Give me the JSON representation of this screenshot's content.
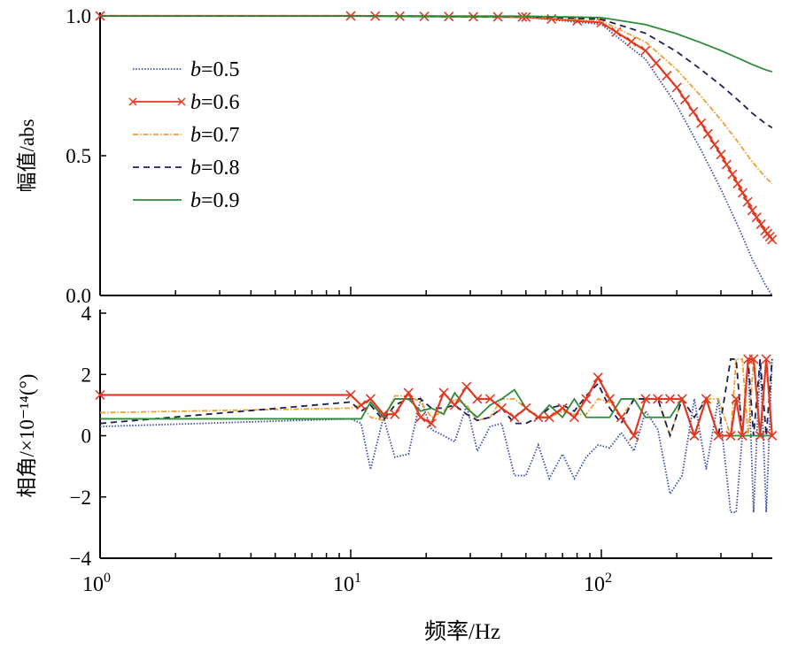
{
  "chart_data": [
    {
      "type": "line",
      "ylabel": "幅值/abs",
      "xscale": "log",
      "xlim": [
        1,
        480
      ],
      "ylim": [
        0,
        1
      ],
      "yticks": [
        "0.0",
        "0.5",
        "1.0"
      ],
      "grid": false,
      "legend_position": "upper-left",
      "x": [
        1,
        10,
        50,
        100,
        150,
        200,
        250,
        300,
        350,
        400,
        450,
        480
      ],
      "series": [
        {
          "name": "b=0.5",
          "name_var": "b",
          "name_val": "=0.5",
          "color": "#3b4ea0",
          "style": "dotted",
          "values": [
            1,
            1,
            0.995,
            0.97,
            0.845,
            0.68,
            0.52,
            0.38,
            0.25,
            0.13,
            0.04,
            0
          ]
        },
        {
          "name": "b=0.6",
          "name_var": "b",
          "name_val": "=0.6",
          "color": "#e03a22",
          "style": "solid-x",
          "values": [
            1,
            1,
            0.996,
            0.976,
            0.876,
            0.744,
            0.616,
            0.504,
            0.4,
            0.304,
            0.232,
            0.2
          ]
        },
        {
          "name": "b=0.7",
          "name_var": "b",
          "name_val": "=0.7",
          "color": "#f0a030",
          "style": "dashdot",
          "values": [
            1,
            1,
            0.997,
            0.982,
            0.907,
            0.808,
            0.712,
            0.628,
            0.55,
            0.478,
            0.424,
            0.4
          ]
        },
        {
          "name": "b=0.8",
          "name_var": "b",
          "name_val": "=0.8",
          "color": "#1e1e50",
          "style": "dashed",
          "values": [
            1,
            1,
            0.998,
            0.988,
            0.938,
            0.872,
            0.808,
            0.752,
            0.7,
            0.652,
            0.616,
            0.6
          ]
        },
        {
          "name": "b=0.9",
          "name_var": "b",
          "name_val": "=0.9",
          "color": "#2e8b3a",
          "style": "solid",
          "values": [
            1,
            1,
            0.999,
            0.994,
            0.969,
            0.936,
            0.904,
            0.876,
            0.85,
            0.826,
            0.808,
            0.8
          ]
        }
      ]
    },
    {
      "type": "line",
      "ylabel": "相角/×10⁻¹⁴(°)",
      "xlabel": "频率/Hz",
      "xscale": "log",
      "xlim": [
        1,
        480
      ],
      "ylim": [
        -4,
        4
      ],
      "yticks": [
        "−4",
        "−2",
        "0",
        "2",
        "4"
      ],
      "xticks": [
        {
          "base": "10",
          "exp": "0"
        },
        {
          "base": "10",
          "exp": "1"
        },
        {
          "base": "10",
          "exp": "2"
        }
      ],
      "grid": false,
      "x": [
        1,
        10,
        11,
        12,
        13.5,
        15,
        17,
        19,
        21,
        23.5,
        26,
        29,
        32,
        36,
        40,
        45,
        50,
        56,
        62,
        70,
        78,
        87,
        97,
        108,
        120,
        135,
        150,
        168,
        188,
        210,
        235,
        262,
        293,
        328,
        345,
        365,
        385,
        405,
        430,
        455,
        480
      ],
      "series": [
        {
          "name": "b=0.5",
          "color": "#3b4ea0",
          "style": "dotted",
          "values": [
            0.3,
            0.55,
            0.4,
            -1.1,
            0.6,
            -0.7,
            -0.6,
            1.2,
            0.2,
            0.0,
            -0.2,
            1.0,
            -0.5,
            0.3,
            0.4,
            -1.3,
            -1.3,
            -0.3,
            -1.4,
            -0.6,
            -1.4,
            -0.7,
            -0.3,
            -0.4,
            0.1,
            -0.5,
            0.8,
            0.2,
            -1.9,
            -1.3,
            1.2,
            -1.1,
            1.2,
            -2.5,
            -2.5,
            0,
            2.5,
            -2.5,
            2.5,
            -2.5,
            2.5
          ]
        },
        {
          "name": "b=0.7",
          "color": "#f0a030",
          "style": "dashdot",
          "values": [
            0.75,
            0.9,
            1.0,
            0.6,
            0.5,
            1.3,
            1.3,
            1.1,
            0.6,
            0.8,
            1.2,
            1.0,
            0.5,
            0.6,
            1.2,
            1.2,
            0.9,
            0.6,
            0.6,
            0.8,
            0.7,
            0.7,
            1.2,
            1.1,
            0.6,
            1.2,
            1.2,
            1.2,
            0,
            1.2,
            0,
            1.2,
            1.2,
            0,
            2.5,
            2.5,
            0,
            2.5,
            0,
            2.5,
            0
          ]
        },
        {
          "name": "b=0.8",
          "color": "#1e1e50",
          "style": "dashed",
          "values": [
            0.4,
            1.1,
            0.8,
            1.0,
            0.5,
            1.0,
            1.2,
            1.2,
            0.9,
            0.9,
            1.0,
            0.7,
            0.5,
            0.6,
            0.9,
            0.4,
            0.4,
            0.6,
            0.9,
            1.0,
            0.8,
            1.3,
            1.7,
            0.9,
            0.4,
            1.2,
            1.2,
            1.2,
            0.0,
            1.2,
            0.6,
            1.2,
            0,
            2.5,
            2.5,
            0,
            2.5,
            0,
            2.5,
            0,
            2.5
          ]
        },
        {
          "name": "b=0.9",
          "color": "#2e8b3a",
          "style": "solid",
          "values": [
            0.55,
            0.55,
            0.55,
            1.1,
            0.6,
            1.2,
            1.2,
            0.8,
            0.9,
            0.7,
            1.4,
            0.9,
            0.6,
            1.0,
            1.2,
            1.5,
            0.9,
            0.6,
            1.0,
            0.6,
            1.2,
            0.6,
            0.6,
            0.6,
            1.2,
            1.2,
            0.6,
            0.6,
            0.6,
            1.2,
            0.0,
            1.2,
            0.0,
            0.0,
            0.0,
            0,
            0,
            0,
            0,
            0,
            0
          ]
        },
        {
          "name": "b=0.6",
          "color": "#e03a22",
          "style": "solid-x",
          "values": [
            1.33,
            1.33,
            1.0,
            1.2,
            0.7,
            0.7,
            1.4,
            0.6,
            0.4,
            1.4,
            1.0,
            1.6,
            1.2,
            1.2,
            0.9,
            0.6,
            0.9,
            0.6,
            0.6,
            0.9,
            0.6,
            1.2,
            1.9,
            1.2,
            0.6,
            0.0,
            1.2,
            1.2,
            1.2,
            1.2,
            0.0,
            1.2,
            0.0,
            0.0,
            1.2,
            0.0,
            2.5,
            2.5,
            0,
            2.5,
            0
          ]
        }
      ]
    }
  ]
}
